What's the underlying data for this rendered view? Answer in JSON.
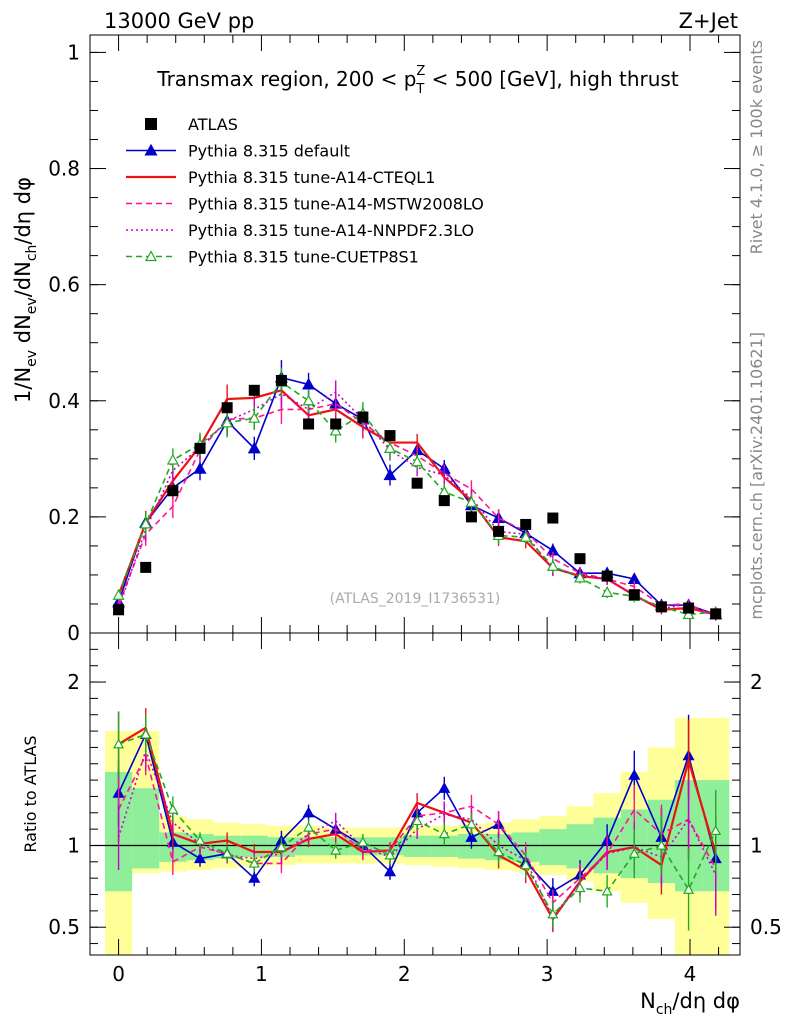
{
  "header": {
    "left": "13000 GeV pp",
    "right": "Z+Jet"
  },
  "side_text": {
    "rivet": "Rivet 4.1.0, ≥ 100k events",
    "mcplots": "mcplots.cern.ch [arXiv:2401.10621]"
  },
  "chart_data": [
    {
      "type": "scatter",
      "title": "Transmax region, 200 < pTZ < 500 [GeV], high thrust",
      "title_parts": {
        "pre": "Transmax region, 200 < p",
        "sup": "Z",
        "sub": "T",
        "post": " < 500 [GeV], high thrust"
      },
      "ylabel": "1/Nev dNev/dNch/dη dφ",
      "watermark": "(ATLAS_2019_I1736531)",
      "xlabel": "Nch/dη dφ",
      "xlim": [
        -0.2,
        4.35
      ],
      "ylim": [
        0,
        1.03
      ],
      "yticks": [
        0,
        0.2,
        0.4,
        0.6,
        0.8,
        1
      ],
      "ytick_labels": [
        "0",
        "0.2",
        "0.4",
        "0.6",
        "0.8",
        "1"
      ],
      "x": [
        0,
        0.19,
        0.38,
        0.57,
        0.76,
        0.95,
        1.14,
        1.33,
        1.52,
        1.71,
        1.9,
        2.09,
        2.28,
        2.47,
        2.66,
        2.85,
        3.04,
        3.23,
        3.42,
        3.61,
        3.8,
        3.99,
        4.18
      ],
      "series": [
        {
          "name": "ATLAS",
          "style": "data",
          "color": "#000000",
          "values": [
            0.04,
            0.113,
            0.245,
            0.318,
            0.388,
            0.418,
            0.435,
            0.36,
            0.36,
            0.372,
            0.34,
            0.258,
            0.228,
            0.2,
            0.175,
            0.187,
            0.198,
            0.128,
            0.098,
            0.066,
            0.045,
            0.043,
            0.033
          ]
        },
        {
          "name": "Pythia 8.315 default",
          "style": "solid-triangle",
          "color": "#0000cc",
          "values": [
            0.053,
            0.19,
            0.25,
            0.283,
            0.365,
            0.318,
            0.44,
            0.428,
            0.395,
            0.368,
            0.272,
            0.315,
            0.283,
            0.22,
            0.198,
            0.172,
            0.142,
            0.103,
            0.103,
            0.093,
            0.048,
            0.048,
            0.032
          ],
          "errors": [
            0.01,
            0.02,
            0.02,
            0.02,
            0.025,
            0.02,
            0.03,
            0.02,
            0.02,
            0.02,
            0.018,
            0.015,
            0.015,
            0.015,
            0.015,
            0.012,
            0.012,
            0.01,
            0.01,
            0.01,
            0.008,
            0.008,
            0.006
          ]
        },
        {
          "name": "Pythia 8.315 tune-A14-CTEQL1",
          "style": "solid",
          "color": "#ee1111",
          "values": [
            0.065,
            0.19,
            0.262,
            0.322,
            0.403,
            0.405,
            0.418,
            0.375,
            0.385,
            0.355,
            0.328,
            0.328,
            0.268,
            0.228,
            0.165,
            0.158,
            0.112,
            0.098,
            0.093,
            0.065,
            0.04,
            0.043,
            0.032
          ],
          "errors": [
            0.01,
            0.02,
            0.02,
            0.02,
            0.025,
            0.02,
            0.025,
            0.02,
            0.02,
            0.02,
            0.018,
            0.015,
            0.015,
            0.015,
            0.015,
            0.012,
            0.012,
            0.01,
            0.01,
            0.01,
            0.008,
            0.008,
            0.006
          ]
        },
        {
          "name": "Pythia 8.315 tune-A14-MSTW2008LO",
          "style": "dashed",
          "color": "#ff1493",
          "values": [
            0.048,
            0.17,
            0.218,
            0.315,
            0.368,
            0.37,
            0.385,
            0.385,
            0.395,
            0.362,
            0.328,
            0.305,
            0.275,
            0.248,
            0.198,
            0.175,
            0.128,
            0.103,
            0.093,
            0.08,
            0.048,
            0.05,
            0.028
          ],
          "errors": [
            0.01,
            0.02,
            0.02,
            0.02,
            0.025,
            0.02,
            0.025,
            0.02,
            0.02,
            0.02,
            0.018,
            0.015,
            0.015,
            0.015,
            0.015,
            0.012,
            0.012,
            0.01,
            0.01,
            0.01,
            0.008,
            0.008,
            0.006
          ]
        },
        {
          "name": "Pythia 8.315 tune-A14-NNPDF2.3LO",
          "style": "dotted",
          "color": "#cc00cc",
          "values": [
            0.042,
            0.178,
            0.28,
            0.32,
            0.365,
            0.385,
            0.412,
            0.385,
            0.415,
            0.368,
            0.315,
            0.285,
            0.272,
            0.232,
            0.175,
            0.17,
            0.11,
            0.1,
            0.093,
            0.065,
            0.042,
            0.05,
            0.027
          ],
          "errors": [
            0.01,
            0.02,
            0.02,
            0.02,
            0.025,
            0.02,
            0.025,
            0.02,
            0.02,
            0.02,
            0.018,
            0.015,
            0.015,
            0.015,
            0.015,
            0.012,
            0.012,
            0.01,
            0.01,
            0.01,
            0.008,
            0.008,
            0.006
          ]
        },
        {
          "name": "Pythia 8.315 tune-CUETP8S1",
          "style": "dashed-triangle",
          "color": "#22aa22",
          "values": [
            0.065,
            0.188,
            0.298,
            0.325,
            0.362,
            0.37,
            0.432,
            0.4,
            0.348,
            0.378,
            0.318,
            0.295,
            0.243,
            0.225,
            0.168,
            0.165,
            0.115,
            0.095,
            0.07,
            0.063,
            0.045,
            0.032,
            0.036
          ],
          "errors": [
            0.01,
            0.02,
            0.02,
            0.02,
            0.025,
            0.02,
            0.025,
            0.02,
            0.02,
            0.02,
            0.018,
            0.015,
            0.015,
            0.015,
            0.015,
            0.012,
            0.012,
            0.01,
            0.01,
            0.01,
            0.008,
            0.008,
            0.006
          ]
        }
      ]
    },
    {
      "type": "line",
      "title": "",
      "ylabel": "Ratio to ATLAS",
      "xlabel": "Nch/dη dφ",
      "xlim": [
        -0.2,
        4.35
      ],
      "ylim": [
        0.33,
        2.3
      ],
      "yticks": [
        0.5,
        1,
        2
      ],
      "ytick_labels": [
        "0.5",
        "1",
        "2"
      ],
      "xticks": [
        0,
        1,
        2,
        3,
        4
      ],
      "xtick_labels": [
        "0",
        "1",
        "2",
        "3",
        "4"
      ],
      "x": [
        0,
        0.19,
        0.38,
        0.57,
        0.76,
        0.95,
        1.14,
        1.33,
        1.52,
        1.71,
        1.9,
        2.09,
        2.28,
        2.47,
        2.66,
        2.85,
        3.04,
        3.23,
        3.42,
        3.61,
        3.8,
        3.99,
        4.18
      ],
      "band_outer": [
        [
          0.2,
          1.7
        ],
        [
          0.83,
          1.7
        ],
        [
          0.84,
          1.18
        ],
        [
          0.85,
          1.16
        ],
        [
          0.86,
          1.14
        ],
        [
          0.87,
          1.13
        ],
        [
          0.88,
          1.12
        ],
        [
          0.89,
          1.12
        ],
        [
          0.89,
          1.11
        ],
        [
          0.89,
          1.11
        ],
        [
          0.89,
          1.11
        ],
        [
          0.88,
          1.12
        ],
        [
          0.87,
          1.12
        ],
        [
          0.86,
          1.13
        ],
        [
          0.85,
          1.14
        ],
        [
          0.84,
          1.16
        ],
        [
          0.82,
          1.18
        ],
        [
          0.78,
          1.24
        ],
        [
          0.72,
          1.32
        ],
        [
          0.65,
          1.45
        ],
        [
          0.55,
          1.6
        ],
        [
          0.3,
          1.78
        ],
        [
          0.3,
          1.78
        ]
      ],
      "band_inner": [
        [
          0.72,
          1.45
        ],
        [
          0.86,
          1.35
        ],
        [
          0.9,
          1.08
        ],
        [
          0.91,
          1.07
        ],
        [
          0.92,
          1.06
        ],
        [
          0.93,
          1.06
        ],
        [
          0.93,
          1.05
        ],
        [
          0.94,
          1.05
        ],
        [
          0.94,
          1.05
        ],
        [
          0.94,
          1.05
        ],
        [
          0.94,
          1.05
        ],
        [
          0.93,
          1.06
        ],
        [
          0.93,
          1.06
        ],
        [
          0.92,
          1.07
        ],
        [
          0.91,
          1.07
        ],
        [
          0.9,
          1.08
        ],
        [
          0.88,
          1.1
        ],
        [
          0.86,
          1.13
        ],
        [
          0.83,
          1.17
        ],
        [
          0.8,
          1.22
        ],
        [
          0.77,
          1.28
        ],
        [
          0.72,
          1.4
        ],
        [
          0.72,
          1.4
        ]
      ],
      "series": [
        {
          "name": "Pythia 8.315 default",
          "style": "solid-triangle",
          "color": "#0000cc",
          "values": [
            1.32,
            1.68,
            1.02,
            0.92,
            0.95,
            0.8,
            1.03,
            1.2,
            1.1,
            1.0,
            0.84,
            1.2,
            1.35,
            1.05,
            1.13,
            0.9,
            0.72,
            0.82,
            1.03,
            1.43,
            1.05,
            1.55,
            0.92
          ],
          "errors": [
            0.2,
            0.12,
            0.08,
            0.05,
            0.05,
            0.05,
            0.06,
            0.05,
            0.05,
            0.05,
            0.05,
            0.06,
            0.07,
            0.07,
            0.08,
            0.08,
            0.08,
            0.09,
            0.1,
            0.15,
            0.18,
            0.25,
            0.25
          ]
        },
        {
          "name": "Pythia 8.315 tune-A14-CTEQL1",
          "style": "solid",
          "color": "#ee1111",
          "values": [
            1.62,
            1.72,
            1.07,
            1.01,
            1.03,
            0.96,
            0.96,
            1.04,
            1.07,
            0.96,
            0.97,
            1.26,
            1.2,
            1.14,
            0.94,
            0.85,
            0.55,
            0.78,
            0.96,
            0.99,
            0.88,
            1.52,
            0.95
          ],
          "errors": [
            0.2,
            0.12,
            0.08,
            0.05,
            0.05,
            0.05,
            0.06,
            0.05,
            0.05,
            0.05,
            0.05,
            0.06,
            0.07,
            0.07,
            0.08,
            0.08,
            0.08,
            0.09,
            0.1,
            0.15,
            0.18,
            0.25,
            0.25
          ]
        },
        {
          "name": "Pythia 8.315 tune-A14-MSTW2008LO",
          "style": "dashed",
          "color": "#ff1493",
          "values": [
            1.22,
            1.55,
            0.9,
            0.99,
            0.95,
            0.89,
            0.89,
            1.07,
            1.1,
            0.97,
            0.97,
            1.18,
            1.2,
            1.24,
            1.13,
            0.94,
            0.65,
            0.8,
            0.95,
            1.22,
            1.07,
            1.16,
            0.86
          ],
          "errors": [
            0.2,
            0.12,
            0.08,
            0.05,
            0.05,
            0.05,
            0.06,
            0.05,
            0.05,
            0.05,
            0.05,
            0.06,
            0.07,
            0.07,
            0.08,
            0.08,
            0.08,
            0.09,
            0.1,
            0.15,
            0.18,
            0.25,
            0.25
          ]
        },
        {
          "name": "Pythia 8.315 tune-A14-NNPDF2.3LO",
          "style": "dotted",
          "color": "#cc00cc",
          "values": [
            1.05,
            1.58,
            1.14,
            1.01,
            0.94,
            0.92,
            0.95,
            1.07,
            1.15,
            0.99,
            0.93,
            1.1,
            1.19,
            1.16,
            1.0,
            0.91,
            0.56,
            0.78,
            0.95,
            0.99,
            0.93,
            1.16,
            0.82
          ],
          "errors": [
            0.2,
            0.12,
            0.08,
            0.05,
            0.05,
            0.05,
            0.06,
            0.05,
            0.05,
            0.05,
            0.05,
            0.06,
            0.07,
            0.07,
            0.08,
            0.08,
            0.08,
            0.09,
            0.1,
            0.15,
            0.18,
            0.25,
            0.25
          ]
        },
        {
          "name": "Pythia 8.315 tune-CUETP8S1",
          "style": "dashed-triangle",
          "color": "#22aa22",
          "values": [
            1.62,
            1.68,
            1.22,
            1.03,
            0.95,
            0.89,
            0.99,
            1.11,
            0.97,
            1.02,
            0.94,
            1.15,
            1.07,
            1.13,
            0.96,
            0.88,
            0.58,
            0.74,
            0.72,
            0.95,
            1.0,
            0.73,
            1.09
          ],
          "errors": [
            0.2,
            0.12,
            0.08,
            0.05,
            0.05,
            0.05,
            0.06,
            0.05,
            0.05,
            0.05,
            0.05,
            0.06,
            0.07,
            0.07,
            0.08,
            0.08,
            0.08,
            0.09,
            0.1,
            0.15,
            0.18,
            0.25,
            0.25
          ]
        }
      ]
    }
  ]
}
